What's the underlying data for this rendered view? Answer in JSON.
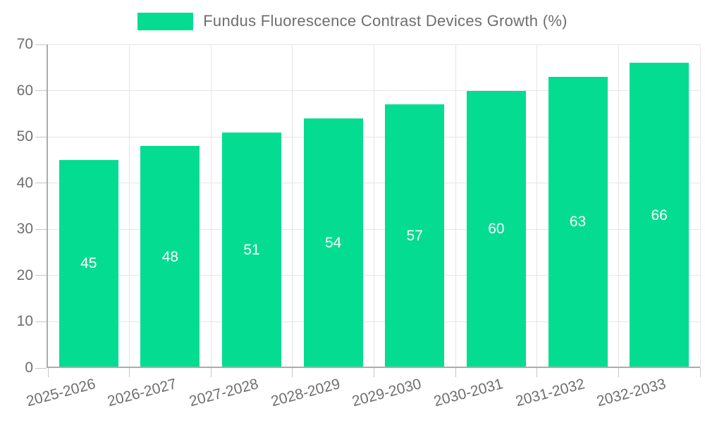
{
  "page": {
    "background_color": "#ffffff"
  },
  "legend": {
    "position": "top",
    "swatch_color": "#04dc92"
  },
  "chart_data": {
    "type": "bar",
    "title": "Fundus Fluorescence Contrast Devices Growth (%)",
    "categories": [
      "2025-2026",
      "2026-2027",
      "2027-2028",
      "2028-2029",
      "2029-2030",
      "2030-2031",
      "2031-2032",
      "2032-2033"
    ],
    "values": [
      45,
      48,
      51,
      54,
      57,
      60,
      63,
      66
    ],
    "xlabel": "",
    "ylabel": "",
    "ylim": [
      0,
      70
    ],
    "yticks": [
      0,
      10,
      20,
      30,
      40,
      50,
      60,
      70
    ],
    "grid": true,
    "legend_position": "top",
    "x_label_rotation_deg": -15,
    "colors": {
      "bar": "#04dc92",
      "value_label": "#ffffff",
      "axis": "#acacac",
      "grid": "#e6e6e6",
      "tick": "#c6c6c6",
      "text": "#6e6e6e"
    }
  }
}
